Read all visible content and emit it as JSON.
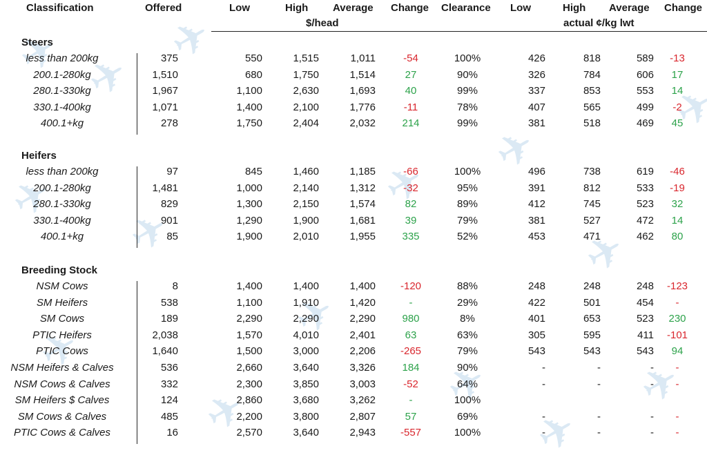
{
  "headers": {
    "classification": "Classification",
    "offered": "Offered",
    "low": "Low",
    "high": "High",
    "average": "Average",
    "change": "Change",
    "clearance": "Clearance",
    "low2": "Low",
    "high2": "High",
    "average2": "Average",
    "change2": "Change",
    "unit_head": "$/head",
    "unit_kg": "actual ¢/kg lwt"
  },
  "sections": [
    {
      "title": "Steers",
      "rows": [
        {
          "cls": "less than 200kg",
          "offered": "375",
          "low": "550",
          "high": "1,515",
          "avg": "1,011",
          "chg": "-54",
          "clr": "100%",
          "low2": "426",
          "high2": "818",
          "avg2": "589",
          "chg2": "-13"
        },
        {
          "cls": "200.1-280kg",
          "offered": "1,510",
          "low": "680",
          "high": "1,750",
          "avg": "1,514",
          "chg": "27",
          "clr": "90%",
          "low2": "326",
          "high2": "784",
          "avg2": "606",
          "chg2": "17"
        },
        {
          "cls": "280.1-330kg",
          "offered": "1,967",
          "low": "1,100",
          "high": "2,630",
          "avg": "1,693",
          "chg": "40",
          "clr": "99%",
          "low2": "337",
          "high2": "853",
          "avg2": "553",
          "chg2": "14"
        },
        {
          "cls": "330.1-400kg",
          "offered": "1,071",
          "low": "1,400",
          "high": "2,100",
          "avg": "1,776",
          "chg": "-11",
          "clr": "78%",
          "low2": "407",
          "high2": "565",
          "avg2": "499",
          "chg2": "-2"
        },
        {
          "cls": "400.1+kg",
          "offered": "278",
          "low": "1,750",
          "high": "2,404",
          "avg": "2,032",
          "chg": "214",
          "clr": "99%",
          "low2": "381",
          "high2": "518",
          "avg2": "469",
          "chg2": "45"
        }
      ]
    },
    {
      "title": "Heifers",
      "rows": [
        {
          "cls": "less than 200kg",
          "offered": "97",
          "low": "845",
          "high": "1,460",
          "avg": "1,185",
          "chg": "-66",
          "clr": "100%",
          "low2": "496",
          "high2": "738",
          "avg2": "619",
          "chg2": "-46"
        },
        {
          "cls": "200.1-280kg",
          "offered": "1,481",
          "low": "1,000",
          "high": "2,140",
          "avg": "1,312",
          "chg": "-32",
          "clr": "95%",
          "low2": "391",
          "high2": "812",
          "avg2": "533",
          "chg2": "-19"
        },
        {
          "cls": "280.1-330kg",
          "offered": "829",
          "low": "1,300",
          "high": "2,150",
          "avg": "1,574",
          "chg": "82",
          "clr": "89%",
          "low2": "412",
          "high2": "745",
          "avg2": "523",
          "chg2": "32"
        },
        {
          "cls": "330.1-400kg",
          "offered": "901",
          "low": "1,290",
          "high": "1,900",
          "avg": "1,681",
          "chg": "39",
          "clr": "79%",
          "low2": "381",
          "high2": "527",
          "avg2": "472",
          "chg2": "14"
        },
        {
          "cls": "400.1+kg",
          "offered": "85",
          "low": "1,900",
          "high": "2,010",
          "avg": "1,955",
          "chg": "335",
          "clr": "52%",
          "low2": "453",
          "high2": "471",
          "avg2": "462",
          "chg2": "80"
        }
      ]
    },
    {
      "title": "Breeding Stock",
      "rows": [
        {
          "cls": "NSM Cows",
          "offered": "8",
          "low": "1,400",
          "high": "1,400",
          "avg": "1,400",
          "chg": "-120",
          "clr": "88%",
          "low2": "248",
          "high2": "248",
          "avg2": "248",
          "chg2": "-123"
        },
        {
          "cls": "SM Heifers",
          "offered": "538",
          "low": "1,100",
          "high": "1,910",
          "avg": "1,420",
          "chg": "-",
          "clr": "29%",
          "low2": "422",
          "high2": "501",
          "avg2": "454",
          "chg2": "-"
        },
        {
          "cls": "SM Cows",
          "offered": "189",
          "low": "2,290",
          "high": "2,290",
          "avg": "2,290",
          "chg": "980",
          "clr": "8%",
          "low2": "401",
          "high2": "653",
          "avg2": "523",
          "chg2": "230"
        },
        {
          "cls": "PTIC Heifers",
          "offered": "2,038",
          "low": "1,570",
          "high": "4,010",
          "avg": "2,401",
          "chg": "63",
          "clr": "63%",
          "low2": "305",
          "high2": "595",
          "avg2": "411",
          "chg2": "-101"
        },
        {
          "cls": "PTIC Cows",
          "offered": "1,640",
          "low": "1,500",
          "high": "3,000",
          "avg": "2,206",
          "chg": "-265",
          "clr": "79%",
          "low2": "543",
          "high2": "543",
          "avg2": "543",
          "chg2": "94"
        },
        {
          "cls": "NSM Heifers & Calves",
          "offered": "536",
          "low": "2,660",
          "high": "3,640",
          "avg": "3,326",
          "chg": "184",
          "clr": "90%",
          "low2": "-",
          "high2": "-",
          "avg2": "-",
          "chg2": "-"
        },
        {
          "cls": "NSM Cows & Calves",
          "offered": "332",
          "low": "2,300",
          "high": "3,850",
          "avg": "3,003",
          "chg": "-52",
          "clr": "64%",
          "low2": "-",
          "high2": "-",
          "avg2": "-",
          "chg2": "-"
        },
        {
          "cls": "SM Heifers $ Calves",
          "offered": "124",
          "low": "2,860",
          "high": "3,680",
          "avg": "3,262",
          "chg": "-",
          "clr": "100%",
          "low2": "",
          "high2": "",
          "avg2": "",
          "chg2": ""
        },
        {
          "cls": "SM Cows & Calves",
          "offered": "485",
          "low": "2,200",
          "high": "3,800",
          "avg": "2,807",
          "chg": "57",
          "clr": "69%",
          "low2": "-",
          "high2": "-",
          "avg2": "-",
          "chg2": "-"
        },
        {
          "cls": "PTIC Cows & Calves",
          "offered": "16",
          "low": "2,570",
          "high": "3,640",
          "avg": "2,943",
          "chg": "-557",
          "clr": "100%",
          "low2": "-",
          "high2": "-",
          "avg2": "-",
          "chg2": "-"
        }
      ]
    }
  ],
  "colors": {
    "negative": "#d9262d",
    "positive": "#2ca24a",
    "watermark": "#dbe9f4"
  }
}
